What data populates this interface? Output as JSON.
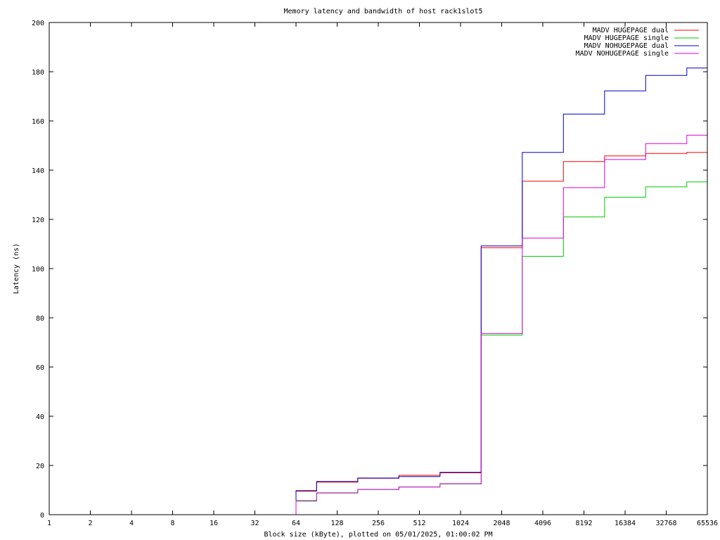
{
  "chart_data": {
    "type": "line",
    "title": "Memory latency and bandwidth of host rack1slot5",
    "xlabel": "Block size (kByte), plotted on 05/01/2025, 01:00:02 PM",
    "ylabel": "Latency (ns)",
    "x_scale": "log2",
    "xlim": [
      1,
      65536
    ],
    "ylim": [
      0,
      200
    ],
    "x_ticks": [
      "1",
      "2",
      "4",
      "8",
      "16",
      "32",
      "64",
      "128",
      "256",
      "512",
      "1024",
      "2048",
      "4096",
      "8192",
      "16384",
      "32768",
      "65536"
    ],
    "y_ticks": [
      "0",
      "20",
      "40",
      "60",
      "80",
      "100",
      "120",
      "140",
      "160",
      "180",
      "200"
    ],
    "legend_position": "top-right",
    "step_style": "histeps",
    "series": [
      {
        "name": "MADV HUGEPAGE dual",
        "color": "#ff0000",
        "x": [
          64,
          128,
          256,
          512,
          1024,
          2048,
          4096,
          8192,
          16384,
          32768,
          65536
        ],
        "values": [
          9.5,
          13.2,
          14.8,
          16.0,
          17.0,
          108.5,
          135.5,
          143.5,
          145.8,
          146.8,
          147.2
        ]
      },
      {
        "name": "MADV HUGEPAGE single",
        "color": "#00cc00",
        "x": [
          64,
          128,
          256,
          512,
          1024,
          2048,
          4096,
          8192,
          16384,
          32768,
          65536
        ],
        "values": [
          5.5,
          8.8,
          10.2,
          11.2,
          12.5,
          73.0,
          105.0,
          121.0,
          129.0,
          133.2,
          135.2
        ]
      },
      {
        "name": "MADV NOHUGEPAGE dual",
        "color": "#0000cc",
        "x": [
          64,
          128,
          256,
          512,
          1024,
          2048,
          4096,
          8192,
          16384,
          32768,
          65536
        ],
        "values": [
          9.8,
          13.5,
          14.9,
          15.5,
          17.2,
          109.2,
          147.2,
          162.8,
          172.2,
          178.5,
          181.5
        ]
      },
      {
        "name": "MADV NOHUGEPAGE single",
        "color": "#dd00dd",
        "x": [
          64,
          128,
          256,
          512,
          1024,
          2048,
          4096,
          8192,
          16384,
          32768,
          65536
        ],
        "values": [
          5.7,
          8.9,
          10.3,
          11.3,
          12.6,
          73.6,
          112.4,
          132.9,
          144.3,
          150.8,
          154.2
        ]
      }
    ]
  }
}
